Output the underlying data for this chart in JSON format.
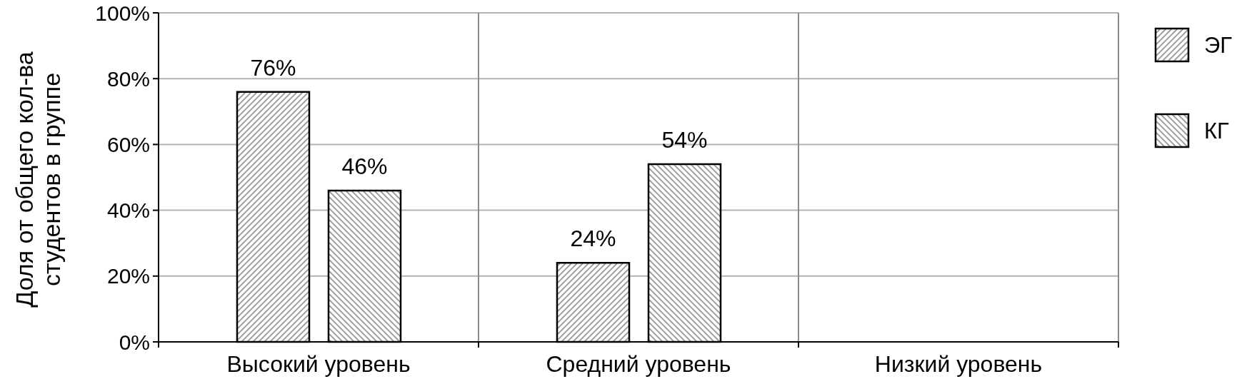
{
  "chart_data": {
    "type": "bar",
    "ylabel": "Доля от общего кол-ва\nстудентов в группе",
    "categories": [
      "Высокий уровень",
      "Средний уровень",
      "Низкий уровень"
    ],
    "series": [
      {
        "name": "ЭГ",
        "color": "#a6a6a6",
        "values": [
          76,
          24,
          null
        ],
        "value_labels": [
          "76%",
          "24%",
          null
        ]
      },
      {
        "name": "КГ",
        "color": "#a6a6a6",
        "values": [
          46,
          54,
          null
        ],
        "value_labels": [
          "46%",
          "54%",
          null
        ]
      }
    ],
    "ylim": [
      0,
      100
    ],
    "yticks": [
      {
        "value": 0,
        "label": "0%"
      },
      {
        "value": 20,
        "label": "20%"
      },
      {
        "value": 40,
        "label": "40%"
      },
      {
        "value": 60,
        "label": "60%"
      },
      {
        "value": 80,
        "label": "80%"
      },
      {
        "value": 100,
        "label": "100%"
      }
    ],
    "grid": true,
    "legend": "right"
  }
}
